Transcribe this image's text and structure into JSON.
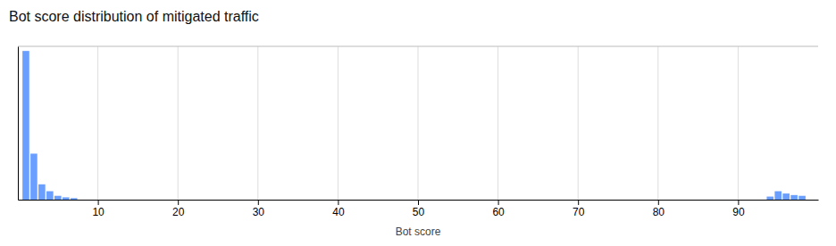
{
  "chart_data": {
    "type": "bar",
    "title": "Bot score distribution of mitigated traffic",
    "xlabel": "Bot score",
    "x": [
      1,
      2,
      3,
      4,
      5,
      6,
      7,
      94,
      95,
      96,
      97,
      98
    ],
    "values": [
      0.97,
      0.3,
      0.1,
      0.055,
      0.025,
      0.015,
      0.01,
      0.02,
      0.055,
      0.04,
      0.03,
      0.025
    ],
    "color": "#6b9fff",
    "xlim": [
      0,
      100
    ],
    "ylim": [
      0,
      1
    ],
    "xticks": [
      10,
      20,
      30,
      40,
      50,
      60,
      70,
      80,
      90
    ],
    "grid": true,
    "tick_labels": "x"
  }
}
